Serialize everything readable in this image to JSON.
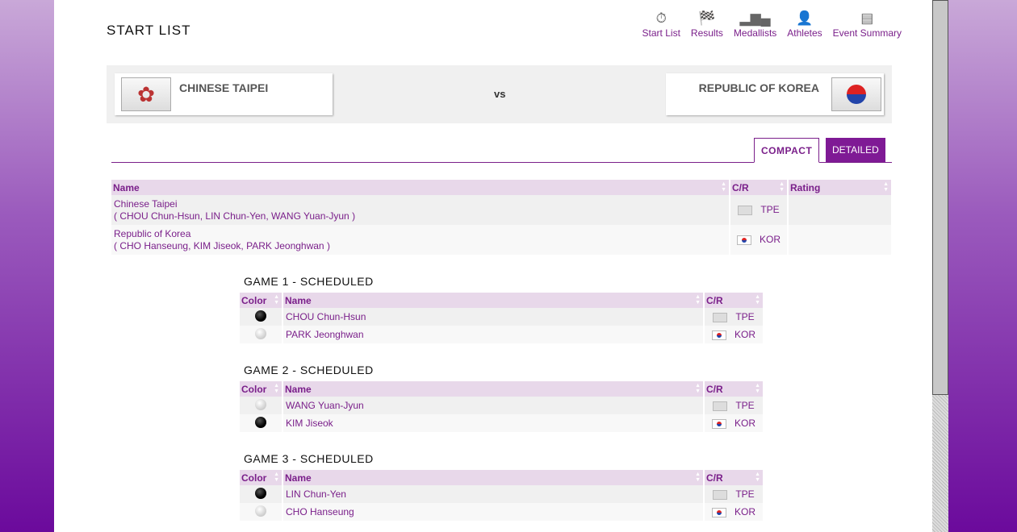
{
  "header": {
    "title": "START LIST",
    "nav": [
      {
        "label": "Start List",
        "icon": "stopwatch-icon"
      },
      {
        "label": "Results",
        "icon": "checkered-flag-icon"
      },
      {
        "label": "Medallists",
        "icon": "podium-icon"
      },
      {
        "label": "Athletes",
        "icon": "athlete-icon"
      },
      {
        "label": "Event Summary",
        "icon": "summary-icon"
      }
    ]
  },
  "match": {
    "home": "CHINESE TAIPEI",
    "vs": "vs",
    "away": "REPUBLIC OF KOREA"
  },
  "tabs": {
    "compact": "COMPACT",
    "detailed": "DETAILED"
  },
  "teams_table": {
    "headers": [
      "Name",
      "C/R",
      "Rating"
    ],
    "rows": [
      {
        "team": "Chinese Taipei",
        "players": [
          "CHOU Chun-Hsun",
          "LIN Chun-Yen",
          "WANG Yuan-Jyun"
        ],
        "code": "TPE"
      },
      {
        "team": "Republic of Korea",
        "players": [
          "CHO Hanseung",
          "KIM Jiseok",
          "PARK Jeonghwan"
        ],
        "code": "KOR"
      }
    ]
  },
  "games": [
    {
      "title": "GAME 1 - SCHEDULED",
      "headers": [
        "Color",
        "Name",
        "C/R"
      ],
      "rows": [
        {
          "color": "black",
          "name": "CHOU Chun-Hsun",
          "code": "TPE"
        },
        {
          "color": "white",
          "name": "PARK Jeonghwan",
          "code": "KOR"
        }
      ]
    },
    {
      "title": "GAME 2 - SCHEDULED",
      "headers": [
        "Color",
        "Name",
        "C/R"
      ],
      "rows": [
        {
          "color": "white",
          "name": "WANG Yuan-Jyun",
          "code": "TPE"
        },
        {
          "color": "black",
          "name": "KIM Jiseok",
          "code": "KOR"
        }
      ]
    },
    {
      "title": "GAME 3 - SCHEDULED",
      "headers": [
        "Color",
        "Name",
        "C/R"
      ],
      "rows": [
        {
          "color": "black",
          "name": "LIN Chun-Yen",
          "code": "TPE"
        },
        {
          "color": "white",
          "name": "CHO Hanseung",
          "code": "KOR"
        }
      ]
    }
  ]
}
